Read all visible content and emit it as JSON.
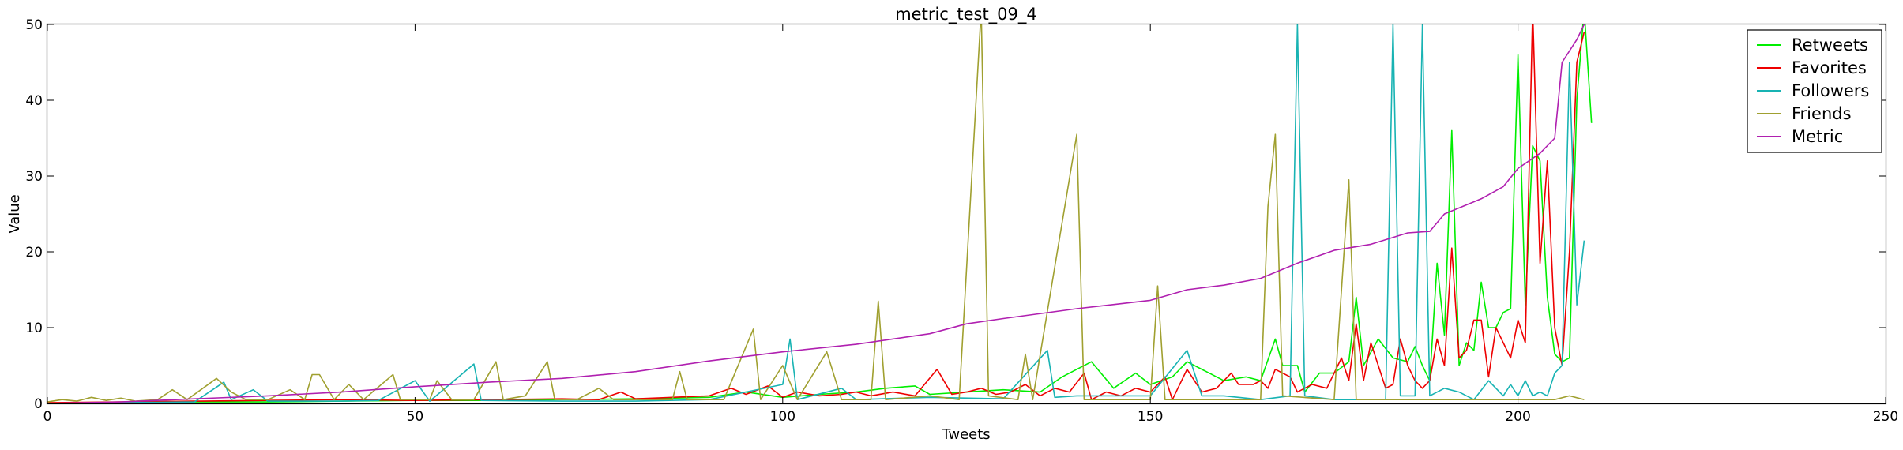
{
  "chart_data": {
    "type": "line",
    "title": "metric_test_09_4",
    "xlabel": "Tweets",
    "ylabel": "Value",
    "xlim": [
      0,
      250
    ],
    "ylim": [
      0,
      50
    ],
    "xticks": [
      0,
      50,
      100,
      150,
      200,
      250
    ],
    "yticks": [
      0,
      10,
      20,
      30,
      40,
      50
    ],
    "grid": false,
    "legend_position": "top-right",
    "series": [
      {
        "name": "Retweets",
        "color": "#00ee00",
        "points": [
          [
            0,
            0
          ],
          [
            10,
            0.1
          ],
          [
            20,
            0.2
          ],
          [
            30,
            0.2
          ],
          [
            40,
            0.3
          ],
          [
            50,
            0.4
          ],
          [
            60,
            0.4
          ],
          [
            70,
            0.5
          ],
          [
            80,
            0.6
          ],
          [
            90,
            0.8
          ],
          [
            95,
            1.5
          ],
          [
            100,
            0.8
          ],
          [
            105,
            1.2
          ],
          [
            110,
            1.5
          ],
          [
            114,
            2.0
          ],
          [
            118,
            2.3
          ],
          [
            120,
            1.2
          ],
          [
            125,
            1.5
          ],
          [
            130,
            1.8
          ],
          [
            135,
            1.5
          ],
          [
            138,
            3.5
          ],
          [
            140,
            4.5
          ],
          [
            142,
            5.5
          ],
          [
            145,
            2.0
          ],
          [
            148,
            4.0
          ],
          [
            150,
            2.5
          ],
          [
            153,
            3.5
          ],
          [
            155,
            5.5
          ],
          [
            158,
            4.0
          ],
          [
            160,
            3.0
          ],
          [
            163,
            3.5
          ],
          [
            165,
            3.0
          ],
          [
            167,
            8.5
          ],
          [
            168,
            5.0
          ],
          [
            170,
            5.0
          ],
          [
            171,
            1.5
          ],
          [
            173,
            4.0
          ],
          [
            175,
            4.0
          ],
          [
            177,
            5.5
          ],
          [
            178,
            14.0
          ],
          [
            179,
            5.0
          ],
          [
            181,
            8.5
          ],
          [
            183,
            6.0
          ],
          [
            185,
            5.5
          ],
          [
            186,
            7.5
          ],
          [
            187,
            5.0
          ],
          [
            188,
            3.0
          ],
          [
            189,
            18.5
          ],
          [
            190,
            9.0
          ],
          [
            191,
            36.0
          ],
          [
            192,
            5.0
          ],
          [
            193,
            8.0
          ],
          [
            194,
            7.0
          ],
          [
            195,
            16.0
          ],
          [
            196,
            10.0
          ],
          [
            197,
            10.0
          ],
          [
            198,
            12.0
          ],
          [
            199,
            12.5
          ],
          [
            200,
            46.0
          ],
          [
            201,
            13.0
          ],
          [
            202,
            34.0
          ],
          [
            203,
            32.0
          ],
          [
            204,
            14.0
          ],
          [
            205,
            6.5
          ],
          [
            206,
            5.5
          ],
          [
            207,
            6.0
          ],
          [
            208,
            40.0
          ],
          [
            209,
            52.0
          ],
          [
            210,
            37.0
          ]
        ]
      },
      {
        "name": "Favorites",
        "color": "#ee0000",
        "points": [
          [
            0,
            0.1
          ],
          [
            10,
            0.2
          ],
          [
            20,
            0.3
          ],
          [
            30,
            0.4
          ],
          [
            40,
            0.5
          ],
          [
            50,
            0.4
          ],
          [
            60,
            0.5
          ],
          [
            70,
            0.6
          ],
          [
            75,
            0.5
          ],
          [
            78,
            1.5
          ],
          [
            80,
            0.6
          ],
          [
            85,
            0.8
          ],
          [
            90,
            1.0
          ],
          [
            93,
            2.0
          ],
          [
            95,
            1.2
          ],
          [
            98,
            2.3
          ],
          [
            100,
            0.8
          ],
          [
            102,
            1.5
          ],
          [
            105,
            1.0
          ],
          [
            108,
            1.2
          ],
          [
            110,
            1.5
          ],
          [
            112,
            1.0
          ],
          [
            115,
            1.5
          ],
          [
            118,
            1.0
          ],
          [
            121,
            4.5
          ],
          [
            123,
            1.2
          ],
          [
            125,
            1.5
          ],
          [
            127,
            2.0
          ],
          [
            129,
            1.2
          ],
          [
            131,
            1.5
          ],
          [
            133,
            2.5
          ],
          [
            135,
            1.0
          ],
          [
            137,
            2.0
          ],
          [
            139,
            1.5
          ],
          [
            141,
            4.0
          ],
          [
            142,
            0.5
          ],
          [
            144,
            1.5
          ],
          [
            146,
            1.0
          ],
          [
            148,
            2.0
          ],
          [
            150,
            1.5
          ],
          [
            152,
            3.5
          ],
          [
            153,
            0.5
          ],
          [
            155,
            4.5
          ],
          [
            157,
            1.5
          ],
          [
            159,
            2.0
          ],
          [
            161,
            4.0
          ],
          [
            162,
            2.5
          ],
          [
            164,
            2.5
          ],
          [
            165,
            3.0
          ],
          [
            166,
            2.0
          ],
          [
            167,
            4.5
          ],
          [
            169,
            3.5
          ],
          [
            170,
            1.5
          ],
          [
            172,
            2.5
          ],
          [
            174,
            2.0
          ],
          [
            176,
            6.0
          ],
          [
            177,
            3.0
          ],
          [
            178,
            10.5
          ],
          [
            179,
            3.0
          ],
          [
            180,
            8.0
          ],
          [
            182,
            2.0
          ],
          [
            183,
            2.5
          ],
          [
            184,
            8.5
          ],
          [
            185,
            5.0
          ],
          [
            186,
            3.0
          ],
          [
            187,
            2.0
          ],
          [
            188,
            3.0
          ],
          [
            189,
            8.5
          ],
          [
            190,
            5.0
          ],
          [
            191,
            20.5
          ],
          [
            192,
            6.0
          ],
          [
            193,
            7.0
          ],
          [
            194,
            11.0
          ],
          [
            195,
            11.0
          ],
          [
            196,
            3.5
          ],
          [
            197,
            10.0
          ],
          [
            198,
            8.0
          ],
          [
            199,
            6.0
          ],
          [
            200,
            11.0
          ],
          [
            201,
            8.0
          ],
          [
            202,
            52.0
          ],
          [
            203,
            18.5
          ],
          [
            204,
            32.0
          ],
          [
            205,
            10.0
          ],
          [
            206,
            5.0
          ],
          [
            207,
            20.0
          ],
          [
            208,
            45.0
          ],
          [
            209,
            49.0
          ]
        ]
      },
      {
        "name": "Followers",
        "color": "#18b3b3",
        "points": [
          [
            0,
            0
          ],
          [
            10,
            0.1
          ],
          [
            20,
            0.2
          ],
          [
            24,
            2.8
          ],
          [
            25,
            0.5
          ],
          [
            28,
            1.8
          ],
          [
            30,
            0.3
          ],
          [
            40,
            0.3
          ],
          [
            45,
            0.4
          ],
          [
            50,
            3.0
          ],
          [
            52,
            0.3
          ],
          [
            58,
            5.2
          ],
          [
            59,
            0.4
          ],
          [
            70,
            0.3
          ],
          [
            80,
            0.3
          ],
          [
            90,
            0.5
          ],
          [
            100,
            2.5
          ],
          [
            101,
            8.5
          ],
          [
            102,
            0.5
          ],
          [
            108,
            2.0
          ],
          [
            110,
            0.5
          ],
          [
            120,
            0.8
          ],
          [
            130,
            0.6
          ],
          [
            136,
            7.0
          ],
          [
            137,
            0.8
          ],
          [
            140,
            1.0
          ],
          [
            145,
            1.0
          ],
          [
            150,
            1.0
          ],
          [
            155,
            7.0
          ],
          [
            157,
            1.0
          ],
          [
            160,
            1.0
          ],
          [
            165,
            0.5
          ],
          [
            169,
            1.0
          ],
          [
            170,
            50.0
          ],
          [
            171,
            1.0
          ],
          [
            175,
            0.5
          ],
          [
            180,
            0.5
          ],
          [
            182,
            0.5
          ],
          [
            183,
            50.0
          ],
          [
            184,
            1.0
          ],
          [
            186,
            1.0
          ],
          [
            187,
            50.0
          ],
          [
            188,
            1.0
          ],
          [
            190,
            2.0
          ],
          [
            192,
            1.5
          ],
          [
            194,
            0.5
          ],
          [
            196,
            3.0
          ],
          [
            198,
            1.0
          ],
          [
            199,
            2.5
          ],
          [
            200,
            1.0
          ],
          [
            201,
            3.0
          ],
          [
            202,
            1.0
          ],
          [
            203,
            1.5
          ],
          [
            204,
            1.0
          ],
          [
            205,
            4.0
          ],
          [
            206,
            5.0
          ],
          [
            207,
            45.0
          ],
          [
            208,
            13.0
          ],
          [
            209,
            21.5
          ]
        ]
      },
      {
        "name": "Friends",
        "color": "#a0a030",
        "points": [
          [
            0,
            0.2
          ],
          [
            2,
            0.5
          ],
          [
            4,
            0.3
          ],
          [
            6,
            0.8
          ],
          [
            8,
            0.4
          ],
          [
            10,
            0.7
          ],
          [
            12,
            0.3
          ],
          [
            15,
            0.5
          ],
          [
            17,
            1.8
          ],
          [
            19,
            0.5
          ],
          [
            23,
            3.3
          ],
          [
            25,
            1.5
          ],
          [
            27,
            0.5
          ],
          [
            30,
            0.5
          ],
          [
            33,
            1.8
          ],
          [
            35,
            0.5
          ],
          [
            36,
            3.8
          ],
          [
            37,
            3.8
          ],
          [
            39,
            0.5
          ],
          [
            41,
            2.5
          ],
          [
            43,
            0.5
          ],
          [
            47,
            3.8
          ],
          [
            48,
            0.5
          ],
          [
            52,
            0.5
          ],
          [
            53,
            3.0
          ],
          [
            55,
            0.5
          ],
          [
            58,
            0.5
          ],
          [
            61,
            5.5
          ],
          [
            62,
            0.5
          ],
          [
            65,
            1.0
          ],
          [
            68,
            5.5
          ],
          [
            69,
            0.5
          ],
          [
            72,
            0.5
          ],
          [
            75,
            2.0
          ],
          [
            77,
            0.5
          ],
          [
            85,
            0.5
          ],
          [
            86,
            4.2
          ],
          [
            87,
            0.5
          ],
          [
            92,
            0.5
          ],
          [
            96,
            9.8
          ],
          [
            97,
            0.5
          ],
          [
            100,
            5.0
          ],
          [
            102,
            0.5
          ],
          [
            106,
            6.8
          ],
          [
            108,
            0.5
          ],
          [
            112,
            0.5
          ],
          [
            113,
            13.5
          ],
          [
            114,
            0.5
          ],
          [
            120,
            1.0
          ],
          [
            124,
            0.5
          ],
          [
            127,
            52.0
          ],
          [
            128,
            1.0
          ],
          [
            132,
            0.5
          ],
          [
            133,
            6.5
          ],
          [
            134,
            0.5
          ],
          [
            140,
            35.5
          ],
          [
            141,
            0.5
          ],
          [
            150,
            0.5
          ],
          [
            151,
            15.5
          ],
          [
            152,
            0.5
          ],
          [
            160,
            0.5
          ],
          [
            165,
            0.5
          ],
          [
            166,
            26.0
          ],
          [
            167,
            35.5
          ],
          [
            168,
            1.0
          ],
          [
            175,
            0.5
          ],
          [
            177,
            29.5
          ],
          [
            178,
            0.5
          ],
          [
            185,
            0.5
          ],
          [
            190,
            0.5
          ],
          [
            200,
            0.5
          ],
          [
            205,
            0.5
          ],
          [
            207,
            1.0
          ],
          [
            209,
            0.5
          ]
        ]
      },
      {
        "name": "Metric",
        "color": "#b020b0",
        "points": [
          [
            0,
            0.0
          ],
          [
            10,
            0.2
          ],
          [
            20,
            0.6
          ],
          [
            30,
            1.0
          ],
          [
            40,
            1.5
          ],
          [
            50,
            2.2
          ],
          [
            60,
            2.8
          ],
          [
            70,
            3.3
          ],
          [
            80,
            4.2
          ],
          [
            90,
            5.6
          ],
          [
            100,
            6.8
          ],
          [
            110,
            7.8
          ],
          [
            120,
            9.2
          ],
          [
            125,
            10.5
          ],
          [
            130,
            11.2
          ],
          [
            140,
            12.5
          ],
          [
            150,
            13.6
          ],
          [
            155,
            15.0
          ],
          [
            160,
            15.6
          ],
          [
            165,
            16.5
          ],
          [
            170,
            18.5
          ],
          [
            175,
            20.2
          ],
          [
            180,
            21.0
          ],
          [
            185,
            22.5
          ],
          [
            188,
            22.7
          ],
          [
            190,
            25.0
          ],
          [
            195,
            27.0
          ],
          [
            198,
            28.6
          ],
          [
            200,
            31.0
          ],
          [
            203,
            33.0
          ],
          [
            205,
            35.0
          ],
          [
            206,
            45.0
          ],
          [
            208,
            48.0
          ],
          [
            209,
            50.0
          ]
        ]
      }
    ]
  }
}
